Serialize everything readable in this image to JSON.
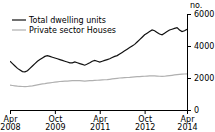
{
  "chart_data": {
    "type": "line",
    "ylabel": "no.",
    "categories": [
      "Apr\n2008",
      null,
      null,
      null,
      null,
      null,
      null,
      null,
      null,
      null,
      null,
      null,
      null,
      null,
      null,
      null,
      null,
      null,
      "Oct\n2009",
      null,
      null,
      null,
      null,
      null,
      null,
      null,
      null,
      null,
      null,
      null,
      null,
      null,
      null,
      null,
      null,
      null,
      "Apr\n2011",
      null,
      null,
      null,
      null,
      null,
      null,
      null,
      null,
      null,
      null,
      null,
      null,
      null,
      null,
      null,
      null,
      null,
      "Oct\n2012",
      null,
      null,
      null,
      null,
      null,
      null,
      null,
      null,
      null,
      null,
      null,
      null,
      null,
      null,
      null,
      null,
      "Apr\n2014"
    ],
    "series": [
      {
        "name": "Total dwelling units",
        "color": "#111111",
        "values": [
          3050,
          2900,
          2750,
          2600,
          2500,
          2400,
          2380,
          2450,
          2600,
          2750,
          2900,
          3050,
          3150,
          3250,
          3350,
          3400,
          3350,
          3300,
          3250,
          3200,
          3150,
          3100,
          3050,
          3000,
          2950,
          2950,
          3000,
          2950,
          2900,
          2850,
          2800,
          2870,
          2950,
          3050,
          3100,
          3050,
          3000,
          3050,
          3100,
          3150,
          3200,
          3280,
          3350,
          3400,
          3500,
          3600,
          3700,
          3800,
          3900,
          4000,
          4100,
          4250,
          4400,
          4550,
          4700,
          4800,
          4900,
          5000,
          4950,
          4850,
          4750,
          4700,
          4800,
          4900,
          5000,
          5050,
          5100,
          5150,
          5000,
          4900,
          4950,
          5050
        ]
      },
      {
        "name": "Private sector Houses",
        "color": "#b0b0b0",
        "values": [
          1550,
          1530,
          1510,
          1490,
          1480,
          1470,
          1460,
          1470,
          1490,
          1510,
          1540,
          1570,
          1600,
          1630,
          1650,
          1680,
          1700,
          1720,
          1740,
          1760,
          1780,
          1790,
          1800,
          1810,
          1820,
          1830,
          1840,
          1840,
          1830,
          1820,
          1810,
          1820,
          1830,
          1840,
          1850,
          1860,
          1870,
          1880,
          1890,
          1900,
          1920,
          1940,
          1960,
          1980,
          2000,
          2010,
          2020,
          2030,
          2040,
          2060,
          2070,
          2080,
          2090,
          2100,
          2110,
          2120,
          2130,
          2140,
          2130,
          2120,
          2110,
          2100,
          2110,
          2130,
          2150,
          2170,
          2190,
          2210,
          2230,
          2240,
          2250,
          2260
        ]
      }
    ],
    "ylim": [
      0,
      6000
    ],
    "yticks": [
      0,
      2000,
      4000,
      6000
    ],
    "grid": false,
    "legend": "upper left"
  }
}
